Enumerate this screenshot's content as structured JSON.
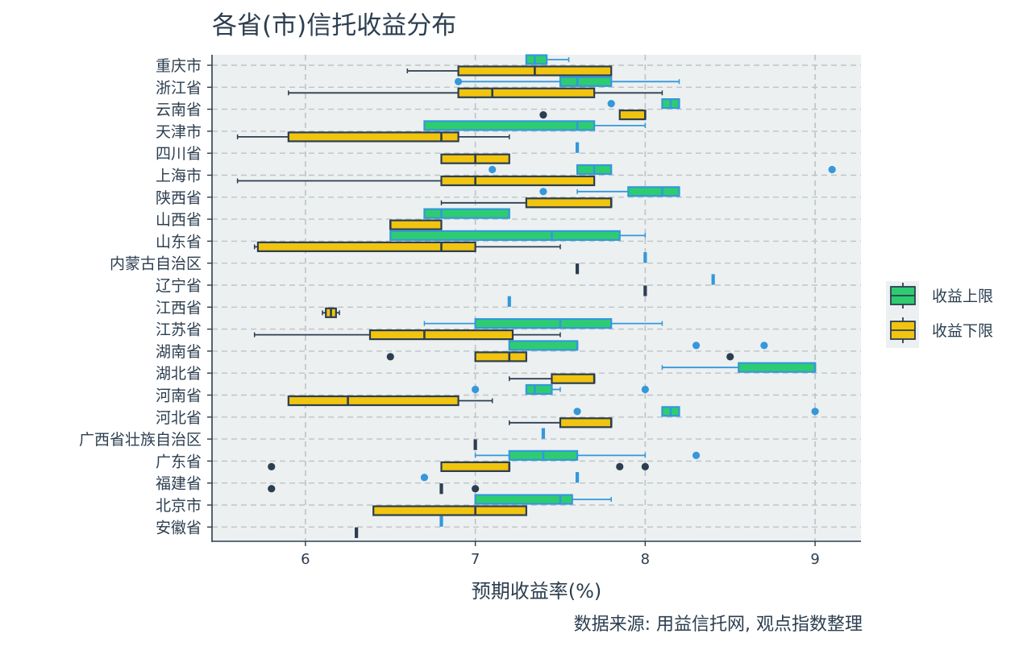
{
  "chart_data": {
    "type": "boxplot",
    "orientation": "horizontal",
    "title": "各省(市)信托收益分布",
    "xlabel": "预期收益率(%)",
    "ylabel": "",
    "caption": "数据来源: 用益信托网, 观点指数整理",
    "xlim": [
      5.45,
      9.27
    ],
    "xticks": [
      6,
      7,
      8,
      9
    ],
    "grid": true,
    "legend_position": "right",
    "categories": [
      "重庆市",
      "浙江省",
      "云南省",
      "天津市",
      "四川省",
      "上海市",
      "陕西省",
      "山西省",
      "山东省",
      "内蒙古自治区",
      "辽宁省",
      "江西省",
      "江苏省",
      "湖南省",
      "湖北省",
      "河南省",
      "河北省",
      "广西省壮族自治区",
      "广东省",
      "福建省",
      "北京市",
      "安徽省"
    ],
    "series": [
      {
        "name": "收益上限",
        "color": "#2ecc71",
        "edge_color": "#3498db",
        "boxes": [
          {
            "category": "重庆市",
            "whisker_low": 7.3,
            "q1": 7.3,
            "median": 7.35,
            "q3": 7.42,
            "whisker_high": 7.55,
            "outliers": []
          },
          {
            "category": "浙江省",
            "whisker_low": 6.9,
            "q1": 7.5,
            "median": 7.6,
            "q3": 7.8,
            "whisker_high": 8.2,
            "outliers": [
              6.9
            ]
          },
          {
            "category": "云南省",
            "whisker_low": 8.1,
            "q1": 8.1,
            "median": 8.15,
            "q3": 8.2,
            "whisker_high": 8.2,
            "outliers": [
              7.8
            ]
          },
          {
            "category": "天津市",
            "whisker_low": 6.7,
            "q1": 6.7,
            "median": 7.6,
            "q3": 7.7,
            "whisker_high": 8.0,
            "outliers": []
          },
          {
            "category": "四川省",
            "whisker_low": 7.6,
            "q1": 7.6,
            "median": 7.6,
            "q3": 7.6,
            "whisker_high": 7.6,
            "outliers": []
          },
          {
            "category": "上海市",
            "whisker_low": 7.6,
            "q1": 7.6,
            "median": 7.7,
            "q3": 7.8,
            "whisker_high": 7.8,
            "outliers": [
              7.1,
              9.1
            ]
          },
          {
            "category": "陕西省",
            "whisker_low": 7.6,
            "q1": 7.9,
            "median": 8.1,
            "q3": 8.2,
            "whisker_high": 8.2,
            "outliers": [
              7.4
            ]
          },
          {
            "category": "山西省",
            "whisker_low": 6.7,
            "q1": 6.7,
            "median": 6.8,
            "q3": 7.2,
            "whisker_high": 7.2,
            "outliers": []
          },
          {
            "category": "山东省",
            "whisker_low": 6.5,
            "q1": 6.5,
            "median": 7.45,
            "q3": 7.85,
            "whisker_high": 8.0,
            "outliers": []
          },
          {
            "category": "内蒙古自治区",
            "whisker_low": 8.0,
            "q1": 8.0,
            "median": 8.0,
            "q3": 8.0,
            "whisker_high": 8.0,
            "outliers": []
          },
          {
            "category": "辽宁省",
            "whisker_low": 8.4,
            "q1": 8.4,
            "median": 8.4,
            "q3": 8.4,
            "whisker_high": 8.4,
            "outliers": []
          },
          {
            "category": "江西省",
            "whisker_low": 7.2,
            "q1": 7.2,
            "median": 7.2,
            "q3": 7.2,
            "whisker_high": 7.2,
            "outliers": []
          },
          {
            "category": "江苏省",
            "whisker_low": 6.7,
            "q1": 7.0,
            "median": 7.5,
            "q3": 7.8,
            "whisker_high": 8.1,
            "outliers": []
          },
          {
            "category": "湖南省",
            "whisker_low": 7.2,
            "q1": 7.2,
            "median": 7.6,
            "q3": 7.6,
            "whisker_high": 7.6,
            "outliers": [
              8.3,
              8.7
            ]
          },
          {
            "category": "湖北省",
            "whisker_low": 8.1,
            "q1": 8.55,
            "median": 9.0,
            "q3": 9.0,
            "whisker_high": 9.0,
            "outliers": []
          },
          {
            "category": "河南省",
            "whisker_low": 7.3,
            "q1": 7.3,
            "median": 7.35,
            "q3": 7.45,
            "whisker_high": 7.5,
            "outliers": [
              7.0,
              8.0
            ]
          },
          {
            "category": "河北省",
            "whisker_low": 8.1,
            "q1": 8.1,
            "median": 8.15,
            "q3": 8.2,
            "whisker_high": 8.2,
            "outliers": [
              7.6,
              9.0
            ]
          },
          {
            "category": "广西省壮族自治区",
            "whisker_low": 7.4,
            "q1": 7.4,
            "median": 7.4,
            "q3": 7.4,
            "whisker_high": 7.4,
            "outliers": []
          },
          {
            "category": "广东省",
            "whisker_low": 7.0,
            "q1": 7.2,
            "median": 7.4,
            "q3": 7.6,
            "whisker_high": 8.0,
            "outliers": [
              8.3
            ]
          },
          {
            "category": "福建省",
            "whisker_low": 7.6,
            "q1": 7.6,
            "median": 7.6,
            "q3": 7.6,
            "whisker_high": 7.6,
            "outliers": [
              6.7
            ]
          },
          {
            "category": "北京市",
            "whisker_low": 7.0,
            "q1": 7.0,
            "median": 7.5,
            "q3": 7.57,
            "whisker_high": 7.8,
            "outliers": []
          },
          {
            "category": "安徽省",
            "whisker_low": 6.8,
            "q1": 6.8,
            "median": 6.8,
            "q3": 6.8,
            "whisker_high": 6.8,
            "outliers": []
          }
        ]
      },
      {
        "name": "收益下限",
        "color": "#f1c40f",
        "edge_color": "#2c3e50",
        "boxes": [
          {
            "category": "重庆市",
            "whisker_low": 6.6,
            "q1": 6.9,
            "median": 7.35,
            "q3": 7.8,
            "whisker_high": 7.8,
            "outliers": []
          },
          {
            "category": "浙江省",
            "whisker_low": 5.9,
            "q1": 6.9,
            "median": 7.1,
            "q3": 7.7,
            "whisker_high": 8.1,
            "outliers": []
          },
          {
            "category": "云南省",
            "whisker_low": 7.85,
            "q1": 7.85,
            "median": 8.0,
            "q3": 8.0,
            "whisker_high": 8.0,
            "outliers": [
              7.4
            ]
          },
          {
            "category": "天津市",
            "whisker_low": 5.6,
            "q1": 5.9,
            "median": 6.8,
            "q3": 6.9,
            "whisker_high": 7.2,
            "outliers": []
          },
          {
            "category": "四川省",
            "whisker_low": 6.8,
            "q1": 6.8,
            "median": 7.0,
            "q3": 7.2,
            "whisker_high": 7.2,
            "outliers": []
          },
          {
            "category": "上海市",
            "whisker_low": 5.6,
            "q1": 6.8,
            "median": 7.0,
            "q3": 7.7,
            "whisker_high": 7.7,
            "outliers": []
          },
          {
            "category": "陕西省",
            "whisker_low": 6.8,
            "q1": 7.3,
            "median": 7.8,
            "q3": 7.8,
            "whisker_high": 7.8,
            "outliers": []
          },
          {
            "category": "山西省",
            "whisker_low": 6.5,
            "q1": 6.5,
            "median": 6.5,
            "q3": 6.8,
            "whisker_high": 6.8,
            "outliers": []
          },
          {
            "category": "山东省",
            "whisker_low": 5.7,
            "q1": 5.72,
            "median": 6.8,
            "q3": 7.0,
            "whisker_high": 7.5,
            "outliers": []
          },
          {
            "category": "内蒙古自治区",
            "whisker_low": 7.6,
            "q1": 7.6,
            "median": 7.6,
            "q3": 7.6,
            "whisker_high": 7.6,
            "outliers": []
          },
          {
            "category": "辽宁省",
            "whisker_low": 8.0,
            "q1": 8.0,
            "median": 8.0,
            "q3": 8.0,
            "whisker_high": 8.0,
            "outliers": []
          },
          {
            "category": "江西省",
            "whisker_low": 6.1,
            "q1": 6.12,
            "median": 6.15,
            "q3": 6.18,
            "whisker_high": 6.2,
            "outliers": []
          },
          {
            "category": "江苏省",
            "whisker_low": 5.7,
            "q1": 6.38,
            "median": 6.7,
            "q3": 7.22,
            "whisker_high": 7.5,
            "outliers": []
          },
          {
            "category": "湖南省",
            "whisker_low": 7.0,
            "q1": 7.0,
            "median": 7.2,
            "q3": 7.3,
            "whisker_high": 7.3,
            "outliers": [
              6.5,
              8.5
            ]
          },
          {
            "category": "湖北省",
            "whisker_low": 7.2,
            "q1": 7.45,
            "median": 7.7,
            "q3": 7.7,
            "whisker_high": 7.7,
            "outliers": []
          },
          {
            "category": "河南省",
            "whisker_low": 5.9,
            "q1": 5.9,
            "median": 6.25,
            "q3": 6.9,
            "whisker_high": 7.1,
            "outliers": []
          },
          {
            "category": "河北省",
            "whisker_low": 7.2,
            "q1": 7.5,
            "median": 7.8,
            "q3": 7.8,
            "whisker_high": 7.8,
            "outliers": []
          },
          {
            "category": "广西省壮族自治区",
            "whisker_low": 7.0,
            "q1": 7.0,
            "median": 7.0,
            "q3": 7.0,
            "whisker_high": 7.0,
            "outliers": []
          },
          {
            "category": "广东省",
            "whisker_low": 6.8,
            "q1": 6.8,
            "median": 7.2,
            "q3": 7.2,
            "whisker_high": 7.2,
            "outliers": [
              5.8,
              7.85,
              8.0
            ]
          },
          {
            "category": "福建省",
            "whisker_low": 6.8,
            "q1": 6.8,
            "median": 6.8,
            "q3": 6.8,
            "whisker_high": 6.8,
            "outliers": [
              5.8,
              7.0
            ]
          },
          {
            "category": "北京市",
            "whisker_low": 6.4,
            "q1": 6.4,
            "median": 7.0,
            "q3": 7.3,
            "whisker_high": 7.3,
            "outliers": []
          },
          {
            "category": "安徽省",
            "whisker_low": 6.3,
            "q1": 6.3,
            "median": 6.3,
            "q3": 6.3,
            "whisker_high": 6.3,
            "outliers": []
          }
        ]
      }
    ]
  },
  "colors": {
    "panel_background": "#ecf0f1",
    "grid": "#bdc3c7",
    "axis": "#2c3e50",
    "text": "#2c3e50"
  }
}
